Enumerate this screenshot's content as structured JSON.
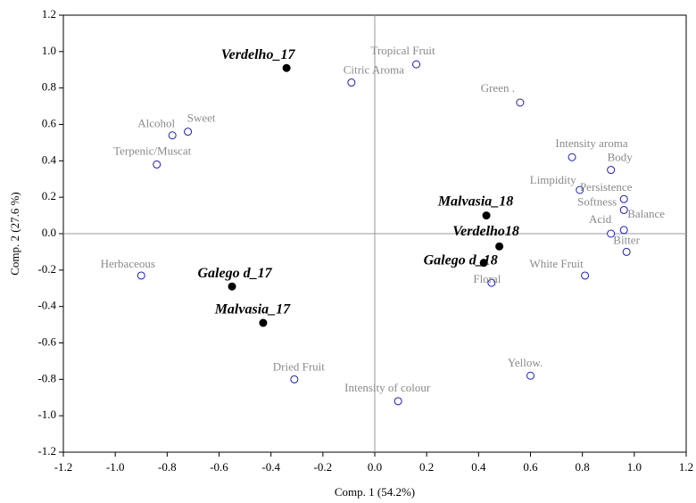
{
  "chart_data": {
    "type": "scatter",
    "xlabel": "Comp. 1 (54.2%)",
    "ylabel": "Comp. 2 (27.6 %)",
    "xlim": [
      -1.2,
      1.2
    ],
    "ylim": [
      -1.2,
      1.2
    ],
    "xticks": [
      -1.2,
      {
        "value": -1,
        "label": "-1.0"
      },
      -0.8,
      -0.6,
      -0.4,
      -0.2,
      {
        "value": 0,
        "label": "0.0"
      },
      0.2,
      0.4,
      0.6,
      0.8,
      {
        "value": 1,
        "label": "1.0"
      },
      1.2
    ],
    "yticks": [
      -1.2,
      {
        "value": -1,
        "label": "-1.0"
      },
      -0.8,
      -0.6,
      -0.4,
      -0.2,
      {
        "value": 0,
        "label": "0.0"
      },
      0.2,
      0.4,
      0.6,
      0.8,
      {
        "value": 1,
        "label": "1.0"
      },
      1.2
    ],
    "grid": false,
    "series": [
      {
        "color": "#1a1acc",
        "marker": "open",
        "labels": [
          "Tropical Fruit",
          "Citric Aroma",
          "Green .",
          "Alcohol",
          "Sweet",
          "Terpenic/Muscat",
          "Intensity aroma",
          "Body",
          "Limpidity",
          "Persistence",
          "Softness",
          "Balance",
          "Acid",
          "Bitter",
          "White Fruit",
          "Herbaceous",
          "Floral",
          "Dried Fruit",
          "Intensity of colour",
          "Yellow."
        ],
        "x": [
          0.16,
          -0.09,
          0.56,
          -0.78,
          -0.72,
          -0.84,
          0.76,
          0.91,
          0.79,
          0.96,
          0.96,
          0.96,
          0.91,
          0.97,
          0.81,
          -0.9,
          0.45,
          -0.31,
          0.09,
          0.6
        ],
        "values": [
          0.93,
          0.83,
          0.72,
          0.54,
          0.56,
          0.38,
          0.42,
          0.35,
          0.24,
          0.19,
          0.13,
          0.02,
          0.0,
          -0.1,
          -0.23,
          -0.23,
          -0.27,
          -0.8,
          -0.92,
          -0.78
        ]
      },
      {
        "color": "#000000",
        "marker": "filled",
        "labels": [
          "Verdelho_17",
          "Malvasia_18",
          "Verdelho18",
          "Galego d_18",
          "Galego d_17",
          "Malvasia_17"
        ],
        "x": [
          -0.34,
          0.43,
          0.48,
          0.42,
          -0.55,
          -0.43
        ],
        "values": [
          0.91,
          0.1,
          -0.07,
          -0.16,
          -0.29,
          -0.49
        ]
      }
    ]
  }
}
